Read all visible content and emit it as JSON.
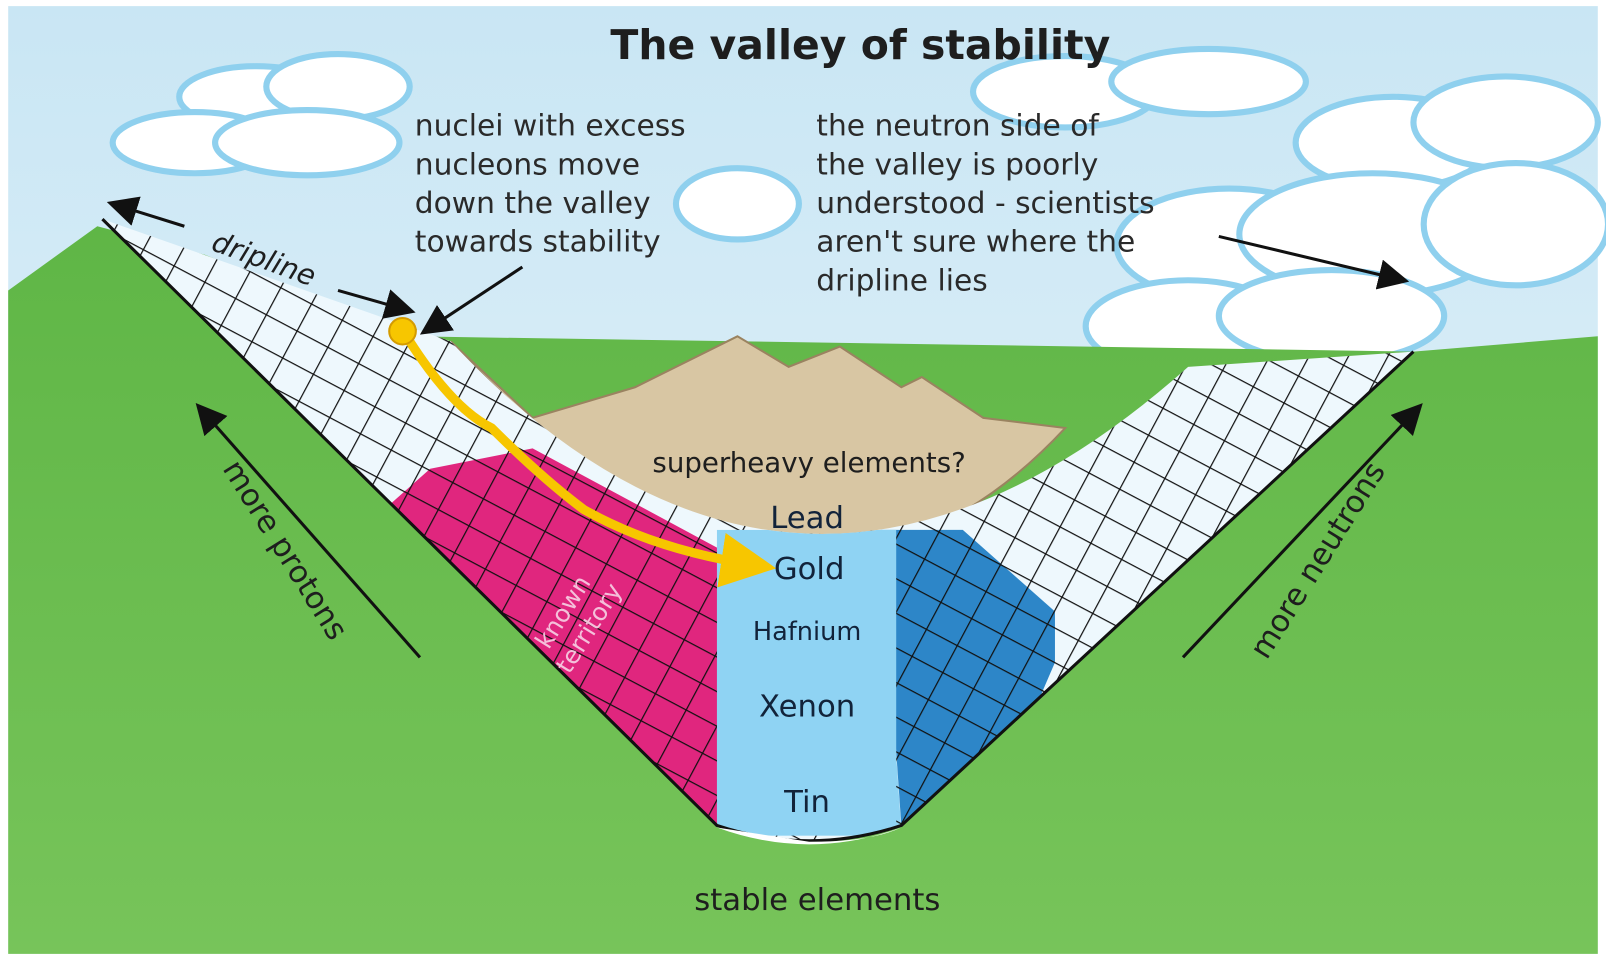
{
  "title": "The valley of stability",
  "annotations": {
    "left": [
      "nuclei with excess",
      "nucleons move",
      "down the valley",
      "towards stability"
    ],
    "right": [
      "the neutron side of",
      "the valley is poorly",
      "understood - scientists",
      "aren't sure where the",
      "dripline lies"
    ]
  },
  "labels": {
    "dripline": "dripline",
    "superheavy": "superheavy elements?",
    "known_territory": [
      "known",
      "territory"
    ],
    "more_protons": "more protons",
    "more_neutrons": "more neutrons",
    "stable_elements": "stable elements"
  },
  "elements": [
    "Lead",
    "Gold",
    "Hafnium",
    "Xenon",
    "Tin"
  ]
}
